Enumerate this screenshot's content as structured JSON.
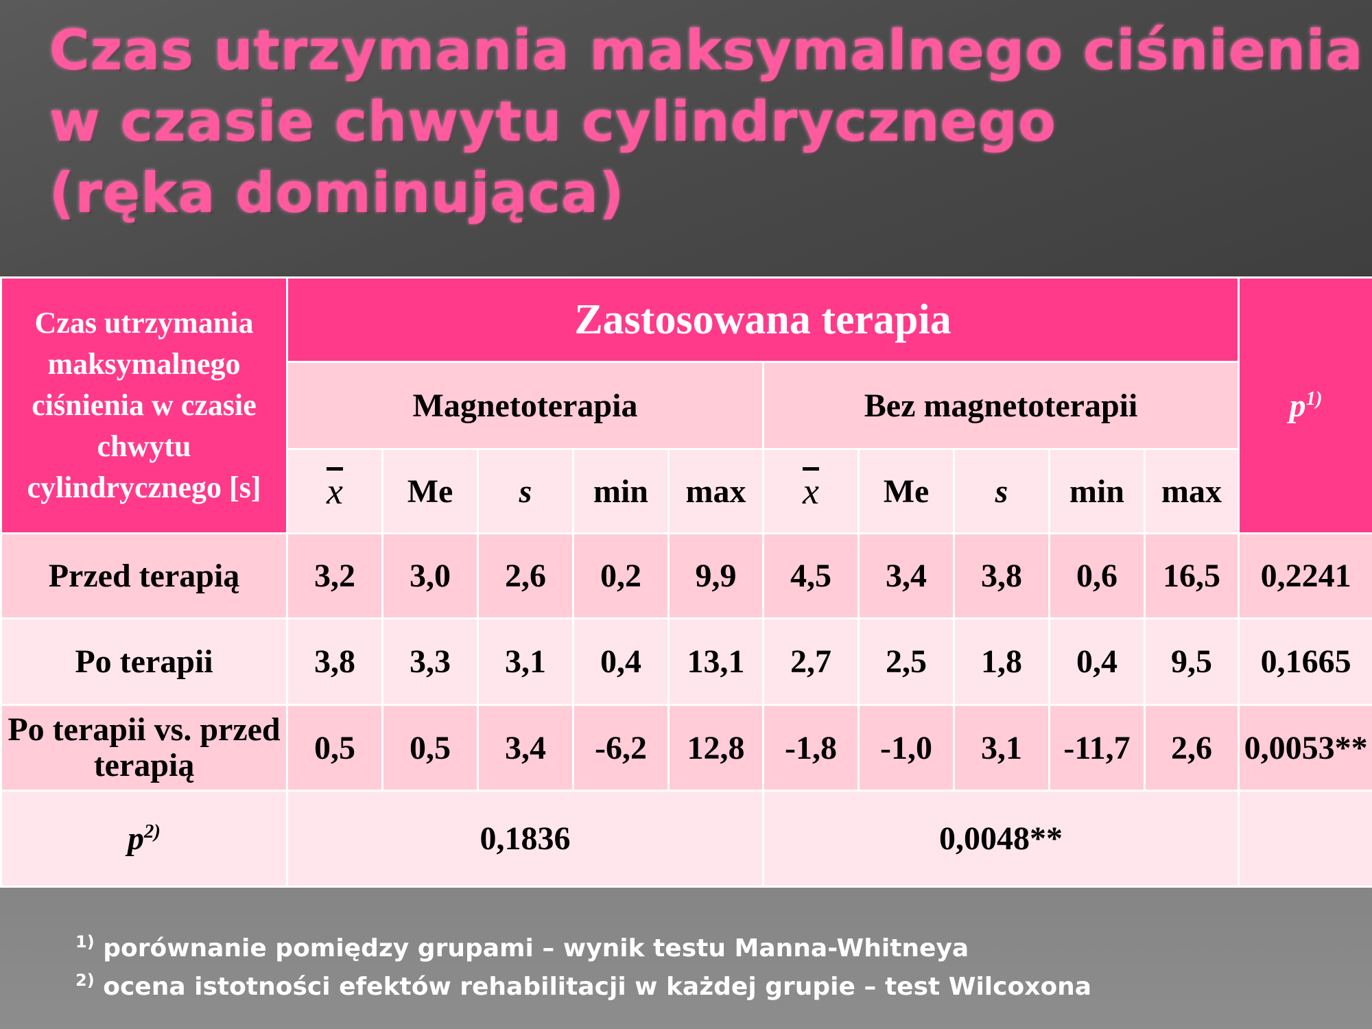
{
  "title": {
    "line1": "Czas utrzymania maksymalnego ciśnienia",
    "line2": "w czasie chwytu cylindrycznego",
    "line3": "(ręka dominująca)"
  },
  "table": {
    "corner": "Czas utrzymania maksymalnego ciśnienia w czasie chwytu cylindrycznego [s]",
    "therapy_header": "Zastosowana terapia",
    "p1_label": "p",
    "p1_sup": "1)",
    "groups": [
      "Magnetoterapia",
      "Bez magnetoterapii"
    ],
    "stats": [
      "x",
      "Me",
      "s",
      "min",
      "max",
      "x",
      "Me",
      "s",
      "min",
      "max"
    ],
    "rows": [
      {
        "label": "Przed terapią",
        "values": [
          "3,2",
          "3,0",
          "2,6",
          "0,2",
          "9,9",
          "4,5",
          "3,4",
          "3,8",
          "0,6",
          "16,5"
        ],
        "p": "0,2241"
      },
      {
        "label": "Po terapii",
        "values": [
          "3,8",
          "3,3",
          "3,1",
          "0,4",
          "13,1",
          "2,7",
          "2,5",
          "1,8",
          "0,4",
          "9,5"
        ],
        "p": "0,1665"
      },
      {
        "label": "Po terapii vs. przed terapią",
        "values": [
          "0,5",
          "0,5",
          "3,4",
          "-6,2",
          "12,8",
          "-1,8",
          "-1,0",
          "3,1",
          "-11,7",
          "2,6"
        ],
        "p": "0,0053**"
      }
    ],
    "p2_label": "p",
    "p2_sup": "2)",
    "p2_values": [
      "0,1836",
      "0,0048**"
    ]
  },
  "footnotes": [
    {
      "sup": "1)",
      "text": "porównanie pomiędzy grupami – wynik testu Manna-Whitneya"
    },
    {
      "sup": "2)",
      "text": "ocena istotności efektów rehabilitacji w każdej grupie – test Wilcoxona"
    }
  ],
  "colors": {
    "accent": "#ff3a8a",
    "light": "#ffccd8",
    "lighter": "#ffe6ec",
    "title": "#ff5a9e"
  }
}
